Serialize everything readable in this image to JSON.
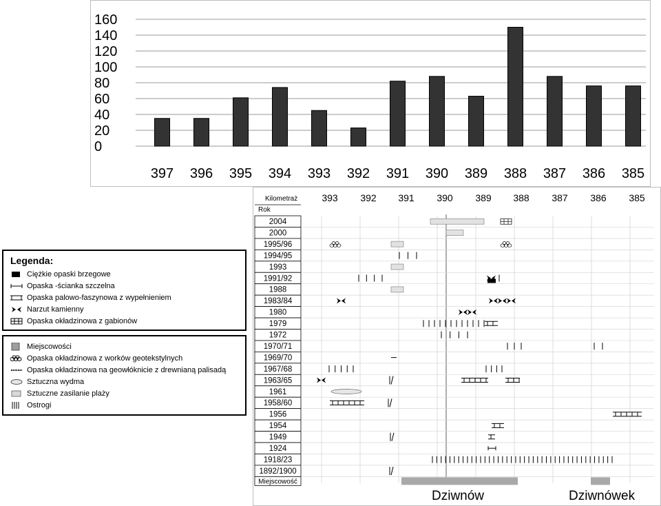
{
  "chart_data": {
    "type": "bar",
    "categories": [
      "397",
      "396",
      "395",
      "394",
      "393",
      "392",
      "391",
      "390",
      "389",
      "388",
      "387",
      "386",
      "385"
    ],
    "values": [
      35,
      35,
      61,
      74,
      45,
      23,
      82,
      88,
      63,
      150,
      88,
      76,
      76
    ],
    "ylim": [
      0,
      160
    ],
    "yticks": [
      "160",
      "140",
      "120",
      "100",
      "80",
      "60",
      "40",
      "20",
      "0"
    ],
    "grid": true,
    "bar_color": "#333333"
  },
  "legend1": {
    "title": "Legenda:",
    "items": [
      {
        "icon": "heavy-revetment-icon",
        "label": "Ciężkie opaski brzegowe"
      },
      {
        "icon": "sheet-pile-icon",
        "label": "Opaska -ścianka szczelna"
      },
      {
        "icon": "pile-fascine-icon",
        "label": "Opaska palowo-faszynowa z wypełnieniem"
      },
      {
        "icon": "rock-fill-icon",
        "label": "Narzut kamienny"
      },
      {
        "icon": "gabion-icon",
        "label": "Opaska okładzinowa z gabionów"
      }
    ]
  },
  "legend2": {
    "items": [
      {
        "icon": "settlement-icon",
        "label": "Miejscowości"
      },
      {
        "icon": "geotextile-bag-icon",
        "label": "Opaska okładzinowa z worków geotekstylnych"
      },
      {
        "icon": "geofabric-palisade-icon",
        "label": "Opaska okładzinowa  na geowłóknicie z drewnianą palisadą"
      },
      {
        "icon": "artificial-dune-icon",
        "label": "Sztuczna wydma"
      },
      {
        "icon": "beach-nourishment-icon",
        "label": "Sztuczne zasilanie plaży"
      },
      {
        "icon": "groyne-icon",
        "label": "Ostrogi"
      }
    ]
  },
  "timeline": {
    "header_km": "Kilometraż",
    "header_year": "Rok",
    "km_labels": [
      "393",
      "392",
      "391",
      "390",
      "389",
      "388",
      "387",
      "386",
      "385"
    ],
    "years": [
      "2004",
      "2000",
      "1995/96",
      "1994/95",
      "1993",
      "1991/92",
      "1988",
      "1983/84",
      "1980",
      "1979",
      "1972",
      "1970/71",
      "1969/70",
      "1967/68",
      "1963/65",
      "1961",
      "1958/60",
      "1956",
      "1954",
      "1949",
      "1924",
      "1918/23",
      "1892/1900"
    ],
    "footer": "Miejscowość",
    "towns": [
      "Dziwnów",
      "Dziwnówek"
    ]
  }
}
